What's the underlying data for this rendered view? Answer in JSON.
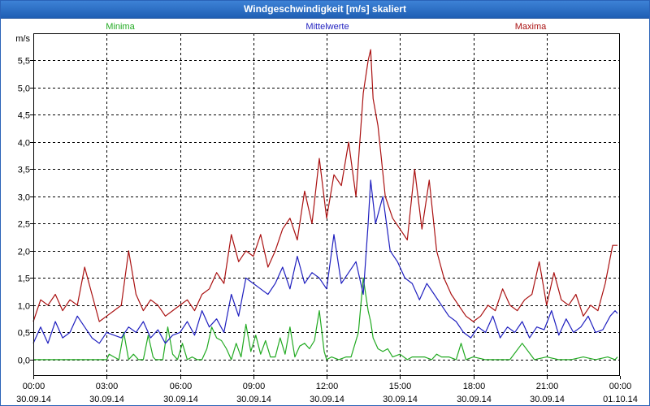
{
  "window": {
    "title": "Windgeschwindigkeit [m/s] skaliert"
  },
  "chart_data": {
    "type": "line",
    "title": "Windgeschwindigkeit [m/s] skaliert",
    "ylabel": "m/s",
    "xlabel": "",
    "ylim": [
      -0.3,
      6.0
    ],
    "yticks": [
      0.0,
      0.5,
      1.0,
      1.5,
      2.0,
      2.5,
      3.0,
      3.5,
      4.0,
      4.5,
      5.0,
      5.5
    ],
    "ytick_labels": [
      "0,0",
      "0,5",
      "1,0",
      "1,5",
      "2,0",
      "2,5",
      "3,0",
      "3,5",
      "4,0",
      "4,5",
      "5,0",
      "5,5"
    ],
    "xlim_hours": [
      0,
      24
    ],
    "xticks": [
      {
        "hours": 0,
        "time": "00:00",
        "date": "30.09.14"
      },
      {
        "hours": 3,
        "time": "03:00",
        "date": "30.09.14"
      },
      {
        "hours": 6,
        "time": "06:00",
        "date": "30.09.14"
      },
      {
        "hours": 9,
        "time": "09:00",
        "date": "30.09.14"
      },
      {
        "hours": 12,
        "time": "12:00",
        "date": "30.09.14"
      },
      {
        "hours": 15,
        "time": "15:00",
        "date": "30.09.14"
      },
      {
        "hours": 18,
        "time": "18:00",
        "date": "30.09.14"
      },
      {
        "hours": 21,
        "time": "21:00",
        "date": "30.09.14"
      },
      {
        "hours": 24,
        "time": "00:00",
        "date": "01.10.14"
      }
    ],
    "grid": true,
    "legend_position": "top",
    "series": [
      {
        "name": "Minima",
        "color": "#22aa22",
        "x_hours": [
          0,
          0.5,
          1,
          1.5,
          2,
          2.5,
          3,
          3.1,
          3.3,
          3.5,
          3.7,
          3.9,
          4.1,
          4.3,
          4.5,
          4.7,
          4.9,
          5,
          5.3,
          5.5,
          5.7,
          5.9,
          6.1,
          6.3,
          6.5,
          6.7,
          6.9,
          7.1,
          7.3,
          7.5,
          7.7,
          7.9,
          8.1,
          8.3,
          8.5,
          8.7,
          8.9,
          9.1,
          9.3,
          9.5,
          9.7,
          9.9,
          10.1,
          10.3,
          10.5,
          10.7,
          10.9,
          11.1,
          11.3,
          11.5,
          11.7,
          11.9,
          12,
          12.2,
          12.5,
          12.8,
          13,
          13.3,
          13.5,
          13.7,
          13.8,
          13.9,
          14.1,
          14.3,
          14.5,
          14.7,
          15,
          15.3,
          15.5,
          15.7,
          16,
          16.3,
          16.5,
          16.7,
          17,
          17.3,
          17.5,
          17.7,
          18,
          18.5,
          19,
          19.5,
          20,
          20.5,
          21,
          21.5,
          22,
          22.5,
          23,
          23.5,
          23.8,
          23.9
        ],
        "values": [
          0,
          0,
          0,
          0,
          0,
          0,
          0,
          0.1,
          0.05,
          0,
          0.5,
          0,
          0.1,
          0,
          0,
          0.45,
          0.05,
          0,
          0,
          0.6,
          0.1,
          0,
          0.3,
          0,
          0.05,
          0,
          0,
          0.2,
          0.6,
          0.4,
          0.35,
          0.2,
          0,
          0.3,
          0.05,
          0.65,
          0.15,
          0.45,
          0.1,
          0.35,
          0.05,
          0.05,
          0.4,
          0.1,
          0.6,
          0.05,
          0.25,
          0.3,
          0.2,
          0.35,
          0.9,
          0.15,
          0,
          0.05,
          0,
          0.05,
          0.05,
          0.5,
          1.5,
          0.9,
          0.7,
          0.4,
          0.2,
          0.15,
          0.2,
          0.05,
          0.1,
          0,
          0.05,
          0.05,
          0.05,
          0,
          0.1,
          0.05,
          0.05,
          0,
          0.3,
          0,
          0.05,
          0,
          0,
          0,
          0.3,
          0,
          0.05,
          0,
          0,
          0.05,
          0,
          0.05,
          0,
          0.05
        ]
      },
      {
        "name": "Mittelwerte",
        "color": "#1f1fbf",
        "x_hours": [
          0,
          0.3,
          0.6,
          0.9,
          1.2,
          1.5,
          1.8,
          2.1,
          2.4,
          2.7,
          3,
          3.3,
          3.6,
          3.9,
          4.2,
          4.5,
          4.8,
          5.1,
          5.4,
          5.7,
          6,
          6.3,
          6.6,
          6.9,
          7.2,
          7.5,
          7.8,
          8.1,
          8.4,
          8.7,
          9,
          9.3,
          9.6,
          9.9,
          10.2,
          10.5,
          10.8,
          11.1,
          11.4,
          11.7,
          12,
          12.3,
          12.6,
          12.9,
          13.2,
          13.5,
          13.7,
          13.8,
          14,
          14.3,
          14.6,
          14.9,
          15.2,
          15.5,
          15.8,
          16.1,
          16.4,
          16.7,
          17,
          17.3,
          17.6,
          17.9,
          18.2,
          18.5,
          18.8,
          19.1,
          19.4,
          19.7,
          20,
          20.3,
          20.6,
          20.9,
          21.2,
          21.5,
          21.8,
          22.1,
          22.4,
          22.7,
          23,
          23.3,
          23.6,
          23.8,
          23.9
        ],
        "values": [
          0.3,
          0.6,
          0.3,
          0.7,
          0.4,
          0.5,
          0.8,
          0.6,
          0.4,
          0.3,
          0.5,
          0.45,
          0.4,
          0.6,
          0.5,
          0.7,
          0.4,
          0.55,
          0.3,
          0.45,
          0.5,
          0.7,
          0.45,
          0.9,
          0.6,
          0.75,
          0.5,
          1.2,
          0.8,
          1.5,
          1.4,
          1.3,
          1.2,
          1.4,
          1.7,
          1.3,
          1.9,
          1.4,
          1.6,
          1.5,
          1.3,
          2.3,
          1.4,
          1.6,
          1.8,
          1.2,
          2.5,
          3.3,
          2.5,
          3.0,
          2.0,
          1.8,
          1.5,
          1.4,
          1.1,
          1.4,
          1.2,
          1.0,
          0.8,
          0.7,
          0.5,
          0.4,
          0.6,
          0.5,
          0.8,
          0.4,
          0.6,
          0.5,
          0.7,
          0.4,
          0.6,
          0.55,
          0.9,
          0.45,
          0.75,
          0.5,
          0.6,
          0.8,
          0.5,
          0.55,
          0.8,
          0.9,
          0.85
        ]
      },
      {
        "name": "Maxima",
        "color": "#aa1111",
        "x_hours": [
          0,
          0.3,
          0.6,
          0.9,
          1.2,
          1.5,
          1.8,
          2.1,
          2.4,
          2.7,
          3,
          3.3,
          3.6,
          3.9,
          4.2,
          4.5,
          4.8,
          5.1,
          5.4,
          5.7,
          6,
          6.3,
          6.6,
          6.9,
          7.2,
          7.5,
          7.8,
          8.1,
          8.4,
          8.7,
          9,
          9.3,
          9.6,
          9.9,
          10.2,
          10.5,
          10.8,
          11.1,
          11.4,
          11.7,
          12,
          12.3,
          12.6,
          12.9,
          13.2,
          13.5,
          13.7,
          13.8,
          13.9,
          14.1,
          14.4,
          14.7,
          15,
          15.3,
          15.6,
          15.9,
          16.2,
          16.5,
          16.8,
          17.1,
          17.4,
          17.7,
          18,
          18.3,
          18.6,
          18.9,
          19.2,
          19.5,
          19.8,
          20.1,
          20.4,
          20.7,
          21,
          21.3,
          21.6,
          21.9,
          22.2,
          22.5,
          22.8,
          23.1,
          23.4,
          23.7,
          23.9
        ],
        "values": [
          0.7,
          1.1,
          1.0,
          1.2,
          0.9,
          1.1,
          1.0,
          1.7,
          1.2,
          0.7,
          0.8,
          0.9,
          1.0,
          2.0,
          1.2,
          0.9,
          1.1,
          1.0,
          0.8,
          0.9,
          1.0,
          1.1,
          0.9,
          1.2,
          1.3,
          1.6,
          1.4,
          2.3,
          1.8,
          2.0,
          1.9,
          2.3,
          1.7,
          2.0,
          2.4,
          2.6,
          2.2,
          3.1,
          2.5,
          3.7,
          2.6,
          3.4,
          3.2,
          4.0,
          3.0,
          4.9,
          5.5,
          5.7,
          4.8,
          4.3,
          3.0,
          2.6,
          2.4,
          2.2,
          3.5,
          2.4,
          3.3,
          2.0,
          1.5,
          1.2,
          1.0,
          0.8,
          0.7,
          0.8,
          1.0,
          0.9,
          1.3,
          1.0,
          0.9,
          1.1,
          1.2,
          1.8,
          1.0,
          1.6,
          1.1,
          1.0,
          1.2,
          0.8,
          1.0,
          0.9,
          1.4,
          2.1,
          2.1
        ]
      }
    ]
  }
}
